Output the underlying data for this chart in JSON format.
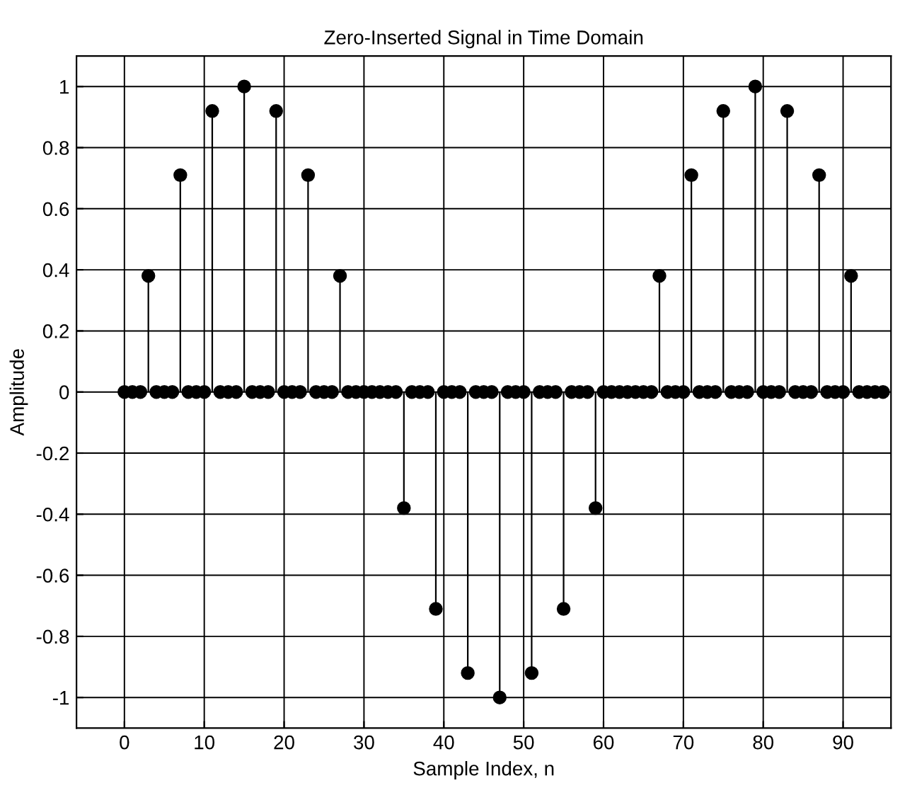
{
  "chart_data": {
    "type": "lollipop",
    "title": "Zero-Inserted Signal in Time Domain",
    "xlabel": "Sample Index, n",
    "ylabel": "Amplitude",
    "x": [
      0,
      1,
      2,
      3,
      4,
      5,
      6,
      7,
      8,
      9,
      10,
      11,
      12,
      13,
      14,
      15,
      16,
      17,
      18,
      19,
      20,
      21,
      22,
      23,
      24,
      25,
      26,
      27,
      28,
      29,
      30,
      31,
      32,
      33,
      34,
      35,
      36,
      37,
      38,
      39,
      40,
      41,
      42,
      43,
      44,
      45,
      46,
      47,
      48,
      49,
      50,
      51,
      52,
      53,
      54,
      55,
      56,
      57,
      58,
      59,
      60,
      61,
      62,
      63,
      64,
      65,
      66,
      67,
      68,
      69,
      70,
      71,
      72,
      73,
      74,
      75,
      76,
      77,
      78,
      79,
      80,
      81,
      82,
      83,
      84,
      85,
      86,
      87,
      88,
      89,
      90,
      91,
      92,
      93,
      94,
      95
    ],
    "series": [
      {
        "color": "#000000",
        "values": [
          0,
          0,
          0,
          0.38,
          0,
          0,
          0,
          0.71,
          0,
          0,
          0,
          0.92,
          0,
          0,
          0,
          1,
          0,
          0,
          0,
          0.92,
          0,
          0,
          0,
          0.71,
          0,
          0,
          0,
          0.38,
          0,
          0,
          0,
          0,
          0,
          0,
          0,
          -0.38,
          0,
          0,
          0,
          -0.71,
          0,
          0,
          0,
          -0.92,
          0,
          0,
          0,
          -1,
          0,
          0,
          0,
          -0.92,
          0,
          0,
          0,
          -0.71,
          0,
          0,
          0,
          -0.38,
          0,
          0,
          0,
          0,
          0,
          0,
          0,
          0.38,
          0,
          0,
          0,
          0.71,
          0,
          0,
          0,
          0.92,
          0,
          0,
          0,
          1,
          0,
          0,
          0,
          0.92,
          0,
          0,
          0,
          0.71,
          0,
          0,
          0,
          0.38,
          0,
          0,
          0,
          0
        ]
      }
    ],
    "xlim": [
      -6,
      96
    ],
    "ylim": [
      -1.1,
      1.1
    ],
    "xticks": [
      0,
      10,
      20,
      30,
      40,
      50,
      60,
      70,
      80,
      90
    ],
    "yticks": [
      -1,
      -0.8,
      -0.6,
      -0.4,
      -0.2,
      0,
      0.2,
      0.4,
      0.6,
      0.8,
      1
    ],
    "grid": true,
    "marker": "circle"
  }
}
